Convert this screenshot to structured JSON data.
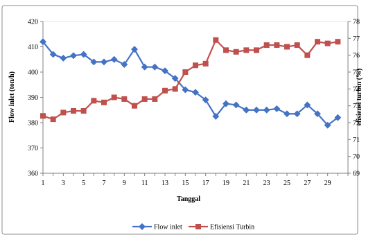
{
  "chart_data": {
    "type": "line",
    "xlabel": "Tanggal",
    "ylabel_left": "Flow inlet (ton/h)",
    "ylabel_right": "efisiensi turbin (%)",
    "x_tick_labels": [
      "1",
      "3",
      "5",
      "7",
      "9",
      "11",
      "13",
      "15",
      "17",
      "19",
      "21",
      "23",
      "25",
      "27",
      "29"
    ],
    "x": [
      1,
      2,
      3,
      4,
      5,
      6,
      7,
      8,
      9,
      10,
      11,
      12,
      13,
      14,
      15,
      16,
      17,
      18,
      19,
      20,
      21,
      22,
      23,
      24,
      25,
      26,
      27,
      28,
      29,
      30
    ],
    "x_range": [
      1,
      31
    ],
    "y_left_range": [
      360,
      420
    ],
    "y_left_ticks": [
      "360",
      "370",
      "380",
      "390",
      "400",
      "410",
      "420"
    ],
    "y_right_range": [
      69,
      78
    ],
    "y_right_ticks": [
      "69",
      "70",
      "71",
      "72",
      "73",
      "74",
      "75",
      "76",
      "77",
      "78"
    ],
    "grid": false,
    "legend_position": "bottom",
    "series": [
      {
        "name": "Flow inlet",
        "axis": "left",
        "color": "#4472c4",
        "marker": "diamond",
        "values": [
          412,
          407,
          405.5,
          406.5,
          407,
          404,
          404,
          405,
          403,
          409,
          402,
          402,
          400.5,
          397.5,
          393,
          392,
          389,
          382.5,
          387.5,
          387,
          385,
          385,
          385,
          385.5,
          383.5,
          383.5,
          387,
          383.5,
          379,
          382
        ]
      },
      {
        "name": "Efisiensi Turbin",
        "axis": "right",
        "color": "#c0504d",
        "marker": "square",
        "values": [
          72.4,
          72.2,
          72.6,
          72.7,
          72.7,
          73.3,
          73.2,
          73.5,
          73.4,
          73.0,
          73.4,
          73.4,
          73.9,
          74.0,
          75.0,
          75.4,
          75.5,
          76.9,
          76.3,
          76.2,
          76.3,
          76.3,
          76.6,
          76.6,
          76.5,
          76.6,
          76.0,
          76.8,
          76.7,
          76.8
        ]
      }
    ]
  }
}
